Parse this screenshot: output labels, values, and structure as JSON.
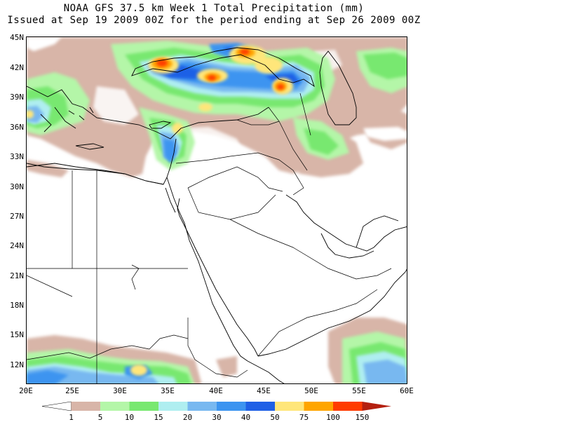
{
  "header": {
    "line1": "NOAA GFS 37.5 km Week 1 Total Precipitation (mm)",
    "line2": "Issued at Sep 19 2009 00Z for the period ending at Sep 26 2009 00Z"
  },
  "axes": {
    "lat_labels": [
      "45N",
      "42N",
      "39N",
      "36N",
      "33N",
      "30N",
      "27N",
      "24N",
      "21N",
      "18N",
      "15N",
      "12N"
    ],
    "lon_labels": [
      "20E",
      "25E",
      "30E",
      "35E",
      "40E",
      "45E",
      "50E",
      "55E",
      "60E"
    ],
    "lat_range": [
      10,
      45
    ],
    "lon_range": [
      20,
      60
    ]
  },
  "legend": {
    "levels": [
      "1",
      "5",
      "10",
      "15",
      "20",
      "30",
      "40",
      "50",
      "75",
      "100",
      "150"
    ],
    "colors": [
      "#ffffff",
      "#d8b5a8",
      "#b4f6a8",
      "#78e870",
      "#afeef0",
      "#78b8f0",
      "#3c94f0",
      "#1f60e6",
      "#ffe67a",
      "#ffa500",
      "#ff3c00",
      "#b42010"
    ]
  },
  "palette": {
    "brown": "#d8b5a8",
    "ltgreen": "#b4f6a8",
    "green": "#78e870",
    "cyan": "#afeef0",
    "ltblue": "#78b8f0",
    "blue": "#3c94f0",
    "dkblue": "#1f60e6",
    "yellow": "#ffe67a",
    "orange": "#ffa500",
    "red": "#ff3c00"
  }
}
